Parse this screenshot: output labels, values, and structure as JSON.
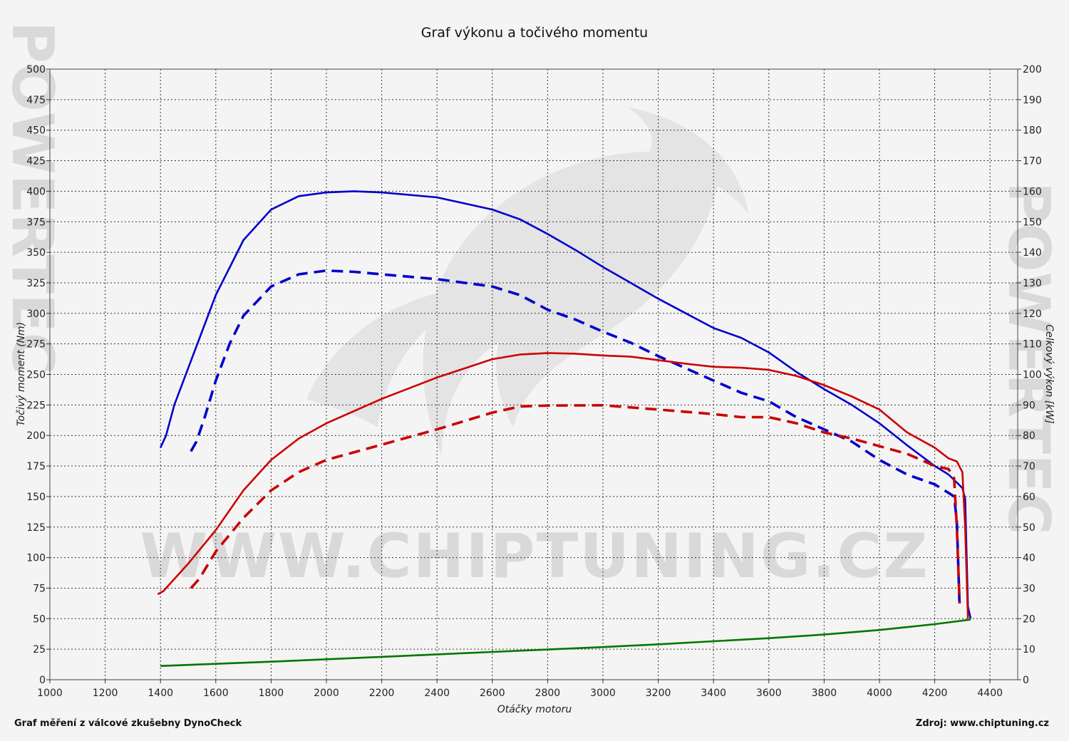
{
  "chart_data": {
    "type": "line",
    "title": "Graf výkonu a točivého momentu",
    "xlabel": "Otáčky motoru",
    "ylabel_left": "Točivý moment (Nm)",
    "ylabel_right": "Celkový výkon [kW]",
    "xlim": [
      1000,
      4500
    ],
    "ylim_left": [
      0,
      500
    ],
    "ylim_right": [
      0,
      200
    ],
    "x_ticks": [
      1000,
      1200,
      1400,
      1600,
      1800,
      2000,
      2200,
      2400,
      2600,
      2800,
      3000,
      3200,
      3400,
      3600,
      3800,
      4000,
      4200,
      4400
    ],
    "y_ticks_left": [
      0,
      25,
      50,
      75,
      100,
      125,
      150,
      175,
      200,
      225,
      250,
      275,
      300,
      325,
      350,
      375,
      400,
      425,
      450,
      475,
      500
    ],
    "y_ticks_right": [
      0,
      10,
      20,
      30,
      40,
      50,
      60,
      70,
      80,
      90,
      100,
      110,
      120,
      130,
      140,
      150,
      160,
      170,
      180,
      190,
      200
    ],
    "grid": true,
    "series": [
      {
        "color": "#0000cc",
        "style": "solid",
        "axis": "left",
        "points": [
          [
            1400,
            190
          ],
          [
            1420,
            200
          ],
          [
            1450,
            225
          ],
          [
            1500,
            255
          ],
          [
            1550,
            285
          ],
          [
            1600,
            315
          ],
          [
            1700,
            360
          ],
          [
            1800,
            385
          ],
          [
            1900,
            396
          ],
          [
            2000,
            399
          ],
          [
            2100,
            400
          ],
          [
            2200,
            399
          ],
          [
            2400,
            395
          ],
          [
            2600,
            385
          ],
          [
            2700,
            377
          ],
          [
            2800,
            365
          ],
          [
            2900,
            352
          ],
          [
            3000,
            338
          ],
          [
            3100,
            325
          ],
          [
            3200,
            312
          ],
          [
            3300,
            300
          ],
          [
            3400,
            288
          ],
          [
            3500,
            280
          ],
          [
            3600,
            268
          ],
          [
            3700,
            252
          ],
          [
            3800,
            238
          ],
          [
            3900,
            225
          ],
          [
            4000,
            210
          ],
          [
            4100,
            192
          ],
          [
            4200,
            175
          ],
          [
            4250,
            168
          ],
          [
            4300,
            157
          ],
          [
            4310,
            148
          ],
          [
            4320,
            60
          ],
          [
            4330,
            50
          ]
        ]
      },
      {
        "color": "#0000cc",
        "style": "dashed",
        "axis": "left",
        "points": [
          [
            1510,
            187
          ],
          [
            1530,
            195
          ],
          [
            1560,
            215
          ],
          [
            1600,
            245
          ],
          [
            1650,
            275
          ],
          [
            1700,
            298
          ],
          [
            1800,
            322
          ],
          [
            1900,
            332
          ],
          [
            2000,
            335
          ],
          [
            2100,
            334
          ],
          [
            2200,
            332
          ],
          [
            2400,
            328
          ],
          [
            2600,
            322
          ],
          [
            2700,
            315
          ],
          [
            2800,
            303
          ],
          [
            2900,
            295
          ],
          [
            3000,
            285
          ],
          [
            3100,
            276
          ],
          [
            3200,
            265
          ],
          [
            3300,
            255
          ],
          [
            3400,
            245
          ],
          [
            3500,
            235
          ],
          [
            3600,
            228
          ],
          [
            3700,
            215
          ],
          [
            3800,
            205
          ],
          [
            3900,
            195
          ],
          [
            4000,
            180
          ],
          [
            4100,
            168
          ],
          [
            4200,
            160
          ],
          [
            4250,
            153
          ],
          [
            4270,
            150
          ],
          [
            4280,
            130
          ],
          [
            4290,
            60
          ]
        ]
      },
      {
        "color": "#cc0000",
        "style": "solid",
        "axis": "right",
        "points": [
          [
            1390,
            28
          ],
          [
            1410,
            29
          ],
          [
            1450,
            33
          ],
          [
            1500,
            38
          ],
          [
            1600,
            49
          ],
          [
            1700,
            62
          ],
          [
            1800,
            72
          ],
          [
            1900,
            79
          ],
          [
            2000,
            84
          ],
          [
            2200,
            92
          ],
          [
            2400,
            99
          ],
          [
            2600,
            105
          ],
          [
            2700,
            106.5
          ],
          [
            2800,
            107
          ],
          [
            2900,
            106.8
          ],
          [
            3000,
            106.2
          ],
          [
            3100,
            105.8
          ],
          [
            3200,
            104.7
          ],
          [
            3300,
            103.5
          ],
          [
            3400,
            102.5
          ],
          [
            3500,
            102.2
          ],
          [
            3600,
            101.5
          ],
          [
            3700,
            99.5
          ],
          [
            3800,
            96.5
          ],
          [
            3900,
            92.8
          ],
          [
            4000,
            88.5
          ],
          [
            4100,
            81
          ],
          [
            4200,
            76
          ],
          [
            4250,
            72.5
          ],
          [
            4280,
            71.5
          ],
          [
            4300,
            68
          ],
          [
            4310,
            50
          ],
          [
            4320,
            20
          ]
        ]
      },
      {
        "color": "#cc0000",
        "style": "dashed",
        "axis": "right",
        "points": [
          [
            1510,
            30
          ],
          [
            1540,
            33
          ],
          [
            1600,
            42
          ],
          [
            1700,
            53
          ],
          [
            1800,
            62
          ],
          [
            1900,
            68
          ],
          [
            2000,
            72
          ],
          [
            2200,
            77
          ],
          [
            2400,
            82
          ],
          [
            2600,
            87.5
          ],
          [
            2700,
            89.5
          ],
          [
            2800,
            89.8
          ],
          [
            3000,
            89.9
          ],
          [
            3200,
            88.5
          ],
          [
            3400,
            87
          ],
          [
            3500,
            86
          ],
          [
            3600,
            86
          ],
          [
            3700,
            84
          ],
          [
            3800,
            81
          ],
          [
            3900,
            79
          ],
          [
            4000,
            76.5
          ],
          [
            4100,
            74
          ],
          [
            4200,
            70
          ],
          [
            4250,
            69
          ],
          [
            4270,
            66
          ],
          [
            4280,
            50
          ],
          [
            4290,
            25
          ]
        ]
      },
      {
        "color": "#007700",
        "style": "solid",
        "axis": "right",
        "points": [
          [
            1400,
            4.5
          ],
          [
            1600,
            5.2
          ],
          [
            1800,
            5.9
          ],
          [
            2000,
            6.7
          ],
          [
            2200,
            7.5
          ],
          [
            2400,
            8.3
          ],
          [
            2600,
            9.1
          ],
          [
            2800,
            9.9
          ],
          [
            3000,
            10.7
          ],
          [
            3200,
            11.6
          ],
          [
            3400,
            12.6
          ],
          [
            3600,
            13.6
          ],
          [
            3800,
            14.8
          ],
          [
            4000,
            16.3
          ],
          [
            4200,
            18.2
          ],
          [
            4330,
            19.7
          ]
        ]
      }
    ]
  },
  "footer": {
    "left": "Graf měření z válcové zkušebny DynoCheck",
    "right": "Zdroj: www.chiptuning.cz"
  },
  "watermark": {
    "text": "WWW.CHIPTUNING.CZ",
    "side_text": "POWERTEC",
    "color": "#d9d9d9"
  }
}
